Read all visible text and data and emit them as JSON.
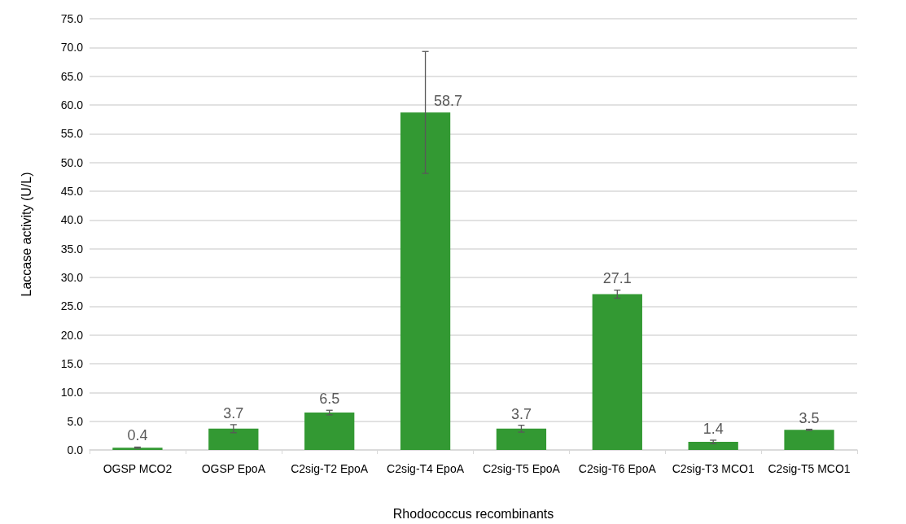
{
  "chart_data": {
    "type": "bar",
    "xlabel": "Rhodococcus recombinants",
    "ylabel": "Laccase activity (U/L)",
    "categories": [
      "OGSP MCO2",
      "OGSP EpoA",
      "C2sig-T2 EpoA",
      "C2sig-T4 EpoA",
      "C2sig-T5 EpoA",
      "C2sig-T6 EpoA",
      "C2sig-T3 MCO1",
      "C2sig-T5 MCO1"
    ],
    "values": [
      0.4,
      3.7,
      6.5,
      58.7,
      3.7,
      27.1,
      1.4,
      3.5
    ],
    "errors": [
      0.1,
      0.7,
      0.4,
      10.6,
      0.6,
      0.7,
      0.3,
      0.1
    ],
    "color": "#339933",
    "ylim": [
      0,
      75
    ],
    "yticks": [
      {
        "value": 0,
        "label": "0.0"
      },
      {
        "value": 5,
        "label": "5.0"
      },
      {
        "value": 10,
        "label": "10.0"
      },
      {
        "value": 15,
        "label": "15.0"
      },
      {
        "value": 20,
        "label": "20.0"
      },
      {
        "value": 25,
        "label": "25.0"
      },
      {
        "value": 30,
        "label": "30.0"
      },
      {
        "value": 35,
        "label": "35.0"
      },
      {
        "value": 40,
        "label": "40.0"
      },
      {
        "value": 45,
        "label": "45.0"
      },
      {
        "value": 50,
        "label": "50.0"
      },
      {
        "value": 55,
        "label": "55.0"
      },
      {
        "value": 60,
        "label": "60.0"
      },
      {
        "value": 65,
        "label": "65.0"
      },
      {
        "value": 70,
        "label": "70.0"
      },
      {
        "value": 75,
        "label": "75.0"
      }
    ],
    "grid": "y",
    "data_labels": true
  }
}
